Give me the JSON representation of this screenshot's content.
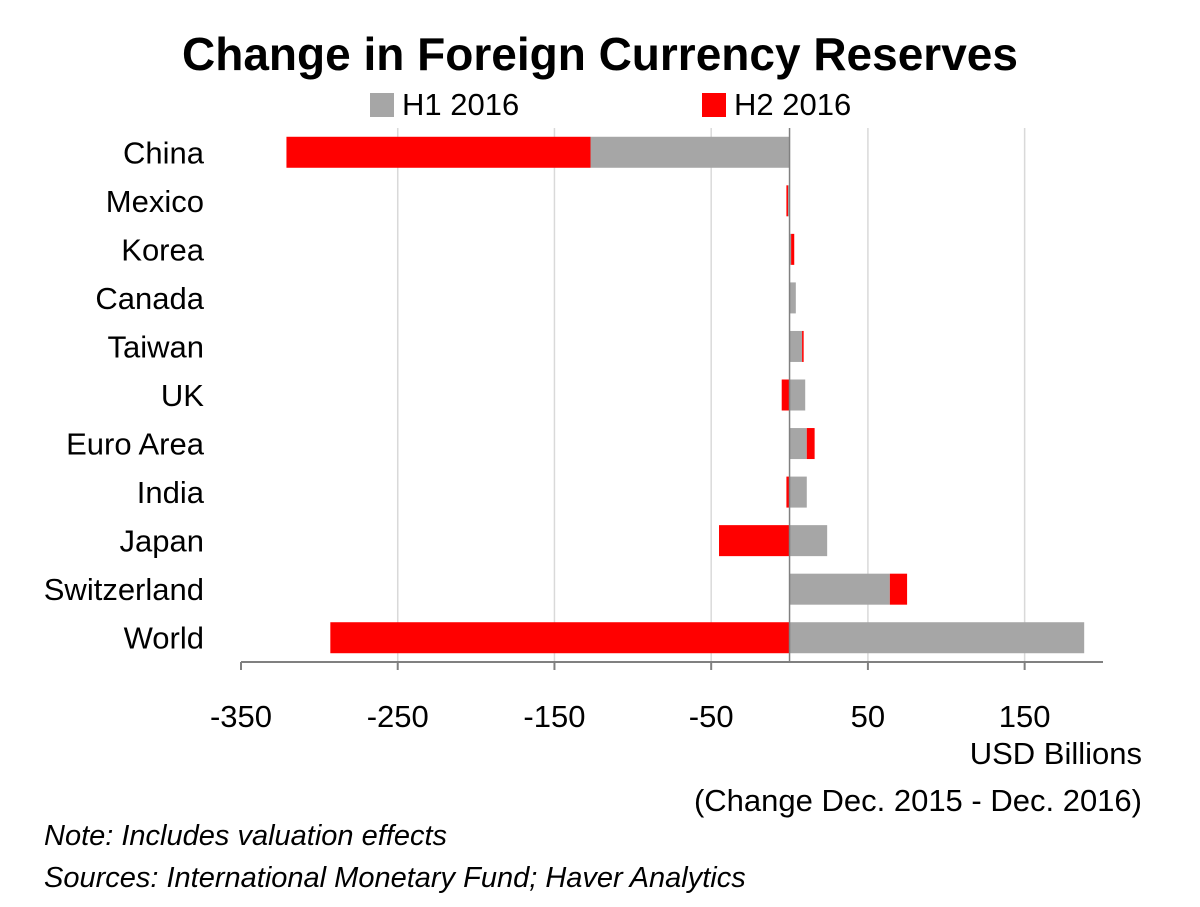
{
  "chart_data": {
    "type": "bar",
    "orientation": "horizontal",
    "stacked": true,
    "title": "Change in Foreign Currency Reserves",
    "categories": [
      "China",
      "Mexico",
      "Korea",
      "Canada",
      "Taiwan",
      "UK",
      "Euro Area",
      "India",
      "Japan",
      "Switzerland",
      "World"
    ],
    "series": [
      {
        "name": "H1 2016",
        "color": "#a6a6a6",
        "values": [
          -127,
          -1,
          1,
          4,
          8,
          10,
          11,
          11,
          24,
          64,
          188
        ]
      },
      {
        "name": "H2 2016",
        "color": "#ff0000",
        "values": [
          -194,
          -1,
          2,
          0,
          1,
          -5,
          5,
          -2,
          -45,
          11,
          -293
        ]
      }
    ],
    "xlim": [
      -350,
      200
    ],
    "xticks": [
      -350,
      -250,
      -150,
      -50,
      50,
      150
    ],
    "xtick_labels": [
      "-350",
      "-250",
      "-150",
      "-50",
      "50",
      "150"
    ],
    "xlabel": "USD Billions",
    "xlabel_sub": "(Change Dec. 2015 - Dec. 2016)",
    "grid": true,
    "legend": "top"
  },
  "notes": {
    "note": "Note: Includes valuation effects",
    "sources": "Sources: International Monetary Fund; Haver Analytics"
  }
}
